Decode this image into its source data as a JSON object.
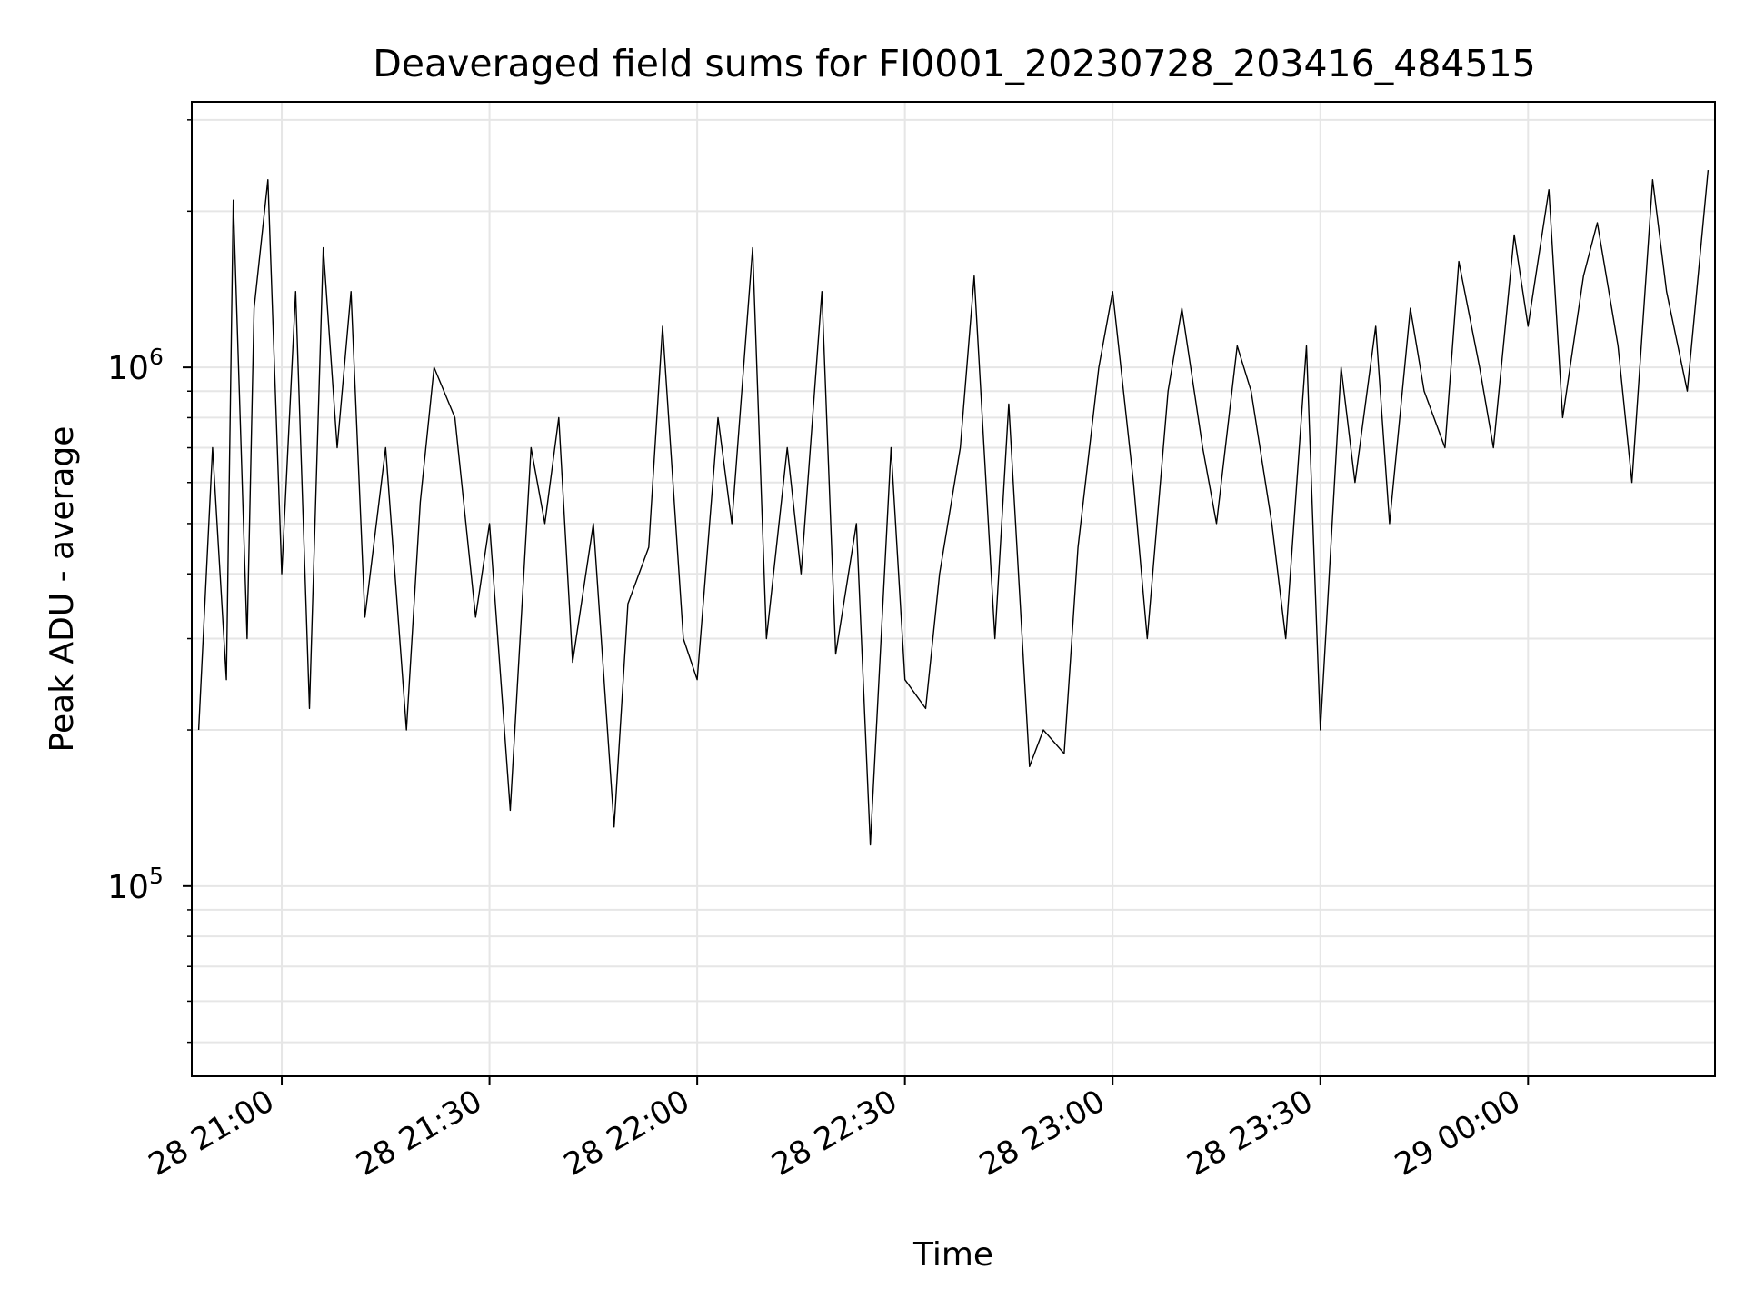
{
  "chart_data": {
    "type": "line",
    "title": "Deaveraged field sums for FI0001_20230728_203416_484515",
    "xlabel": "Time",
    "ylabel": "Peak ADU - average",
    "y_scale": "log",
    "ylim": [
      43000,
      3250000
    ],
    "xlim": [
      "2023-07-28 20:47",
      "2023-07-29 00:27"
    ],
    "grid": true,
    "grid_color": "#e6e6e6",
    "line_color": "#000000",
    "x_ticks": [
      {
        "value": "2023-07-28 21:00",
        "label": "28 21:00"
      },
      {
        "value": "2023-07-28 21:30",
        "label": "28 21:30"
      },
      {
        "value": "2023-07-28 22:00",
        "label": "28 22:00"
      },
      {
        "value": "2023-07-28 22:30",
        "label": "28 22:30"
      },
      {
        "value": "2023-07-28 23:00",
        "label": "28 23:00"
      },
      {
        "value": "2023-07-28 23:30",
        "label": "28 23:30"
      },
      {
        "value": "2023-07-29 00:00",
        "label": "29 00:00"
      }
    ],
    "y_major_ticks": [
      {
        "value": 100000,
        "base": "10",
        "exp": "5"
      },
      {
        "value": 1000000,
        "base": "10",
        "exp": "6"
      }
    ],
    "y_minor_ticks": [
      50000,
      60000,
      70000,
      80000,
      90000,
      200000,
      300000,
      400000,
      500000,
      600000,
      700000,
      800000,
      900000,
      2000000,
      3000000
    ],
    "series": [
      {
        "x": [
          "2023-07-28 20:48",
          "2023-07-28 20:50",
          "2023-07-28 20:52",
          "2023-07-28 20:53",
          "2023-07-28 20:55",
          "2023-07-28 20:56",
          "2023-07-28 20:58",
          "2023-07-28 21:00",
          "2023-07-28 21:02",
          "2023-07-28 21:04",
          "2023-07-28 21:06",
          "2023-07-28 21:08",
          "2023-07-28 21:10",
          "2023-07-28 21:12",
          "2023-07-28 21:15",
          "2023-07-28 21:18",
          "2023-07-28 21:20",
          "2023-07-28 21:22",
          "2023-07-28 21:25",
          "2023-07-28 21:28",
          "2023-07-28 21:30",
          "2023-07-28 21:33",
          "2023-07-28 21:36",
          "2023-07-28 21:38",
          "2023-07-28 21:40",
          "2023-07-28 21:42",
          "2023-07-28 21:45",
          "2023-07-28 21:48",
          "2023-07-28 21:50",
          "2023-07-28 21:53",
          "2023-07-28 21:55",
          "2023-07-28 21:58",
          "2023-07-28 22:00",
          "2023-07-28 22:03",
          "2023-07-28 22:05",
          "2023-07-28 22:08",
          "2023-07-28 22:10",
          "2023-07-28 22:13",
          "2023-07-28 22:15",
          "2023-07-28 22:18",
          "2023-07-28 22:20",
          "2023-07-28 22:23",
          "2023-07-28 22:25",
          "2023-07-28 22:28",
          "2023-07-28 22:30",
          "2023-07-28 22:33",
          "2023-07-28 22:35",
          "2023-07-28 22:38",
          "2023-07-28 22:40",
          "2023-07-28 22:43",
          "2023-07-28 22:45",
          "2023-07-28 22:48",
          "2023-07-28 22:50",
          "2023-07-28 22:53",
          "2023-07-28 22:55",
          "2023-07-28 22:58",
          "2023-07-28 23:00",
          "2023-07-28 23:03",
          "2023-07-28 23:05",
          "2023-07-28 23:08",
          "2023-07-28 23:10",
          "2023-07-28 23:13",
          "2023-07-28 23:15",
          "2023-07-28 23:18",
          "2023-07-28 23:20",
          "2023-07-28 23:23",
          "2023-07-28 23:25",
          "2023-07-28 23:28",
          "2023-07-28 23:30",
          "2023-07-28 23:33",
          "2023-07-28 23:35",
          "2023-07-28 23:38",
          "2023-07-28 23:40",
          "2023-07-28 23:43",
          "2023-07-28 23:45",
          "2023-07-28 23:48",
          "2023-07-28 23:50",
          "2023-07-28 23:53",
          "2023-07-28 23:55",
          "2023-07-28 23:58",
          "2023-07-29 00:00",
          "2023-07-29 00:03",
          "2023-07-29 00:05",
          "2023-07-29 00:08",
          "2023-07-29 00:10",
          "2023-07-29 00:13",
          "2023-07-29 00:15",
          "2023-07-29 00:18",
          "2023-07-29 00:20",
          "2023-07-29 00:23",
          "2023-07-29 00:26"
        ],
        "y": [
          200000,
          700000,
          250000,
          2100000,
          300000,
          1300000,
          2300000,
          400000,
          1400000,
          220000,
          1700000,
          700000,
          1400000,
          330000,
          700000,
          200000,
          550000,
          1000000,
          800000,
          330000,
          500000,
          140000,
          700000,
          500000,
          800000,
          270000,
          500000,
          130000,
          350000,
          450000,
          1200000,
          300000,
          250000,
          800000,
          500000,
          1700000,
          300000,
          700000,
          400000,
          1400000,
          280000,
          500000,
          120000,
          700000,
          250000,
          220000,
          400000,
          700000,
          1500000,
          300000,
          850000,
          170000,
          200000,
          180000,
          450000,
          1000000,
          1400000,
          600000,
          300000,
          900000,
          1300000,
          700000,
          500000,
          1100000,
          900000,
          500000,
          300000,
          1100000,
          200000,
          1000000,
          600000,
          1200000,
          500000,
          1300000,
          900000,
          700000,
          1600000,
          1000000,
          700000,
          1800000,
          1200000,
          2200000,
          800000,
          1500000,
          1900000,
          1100000,
          600000,
          2300000,
          1400000,
          900000,
          2400000
        ]
      }
    ]
  }
}
